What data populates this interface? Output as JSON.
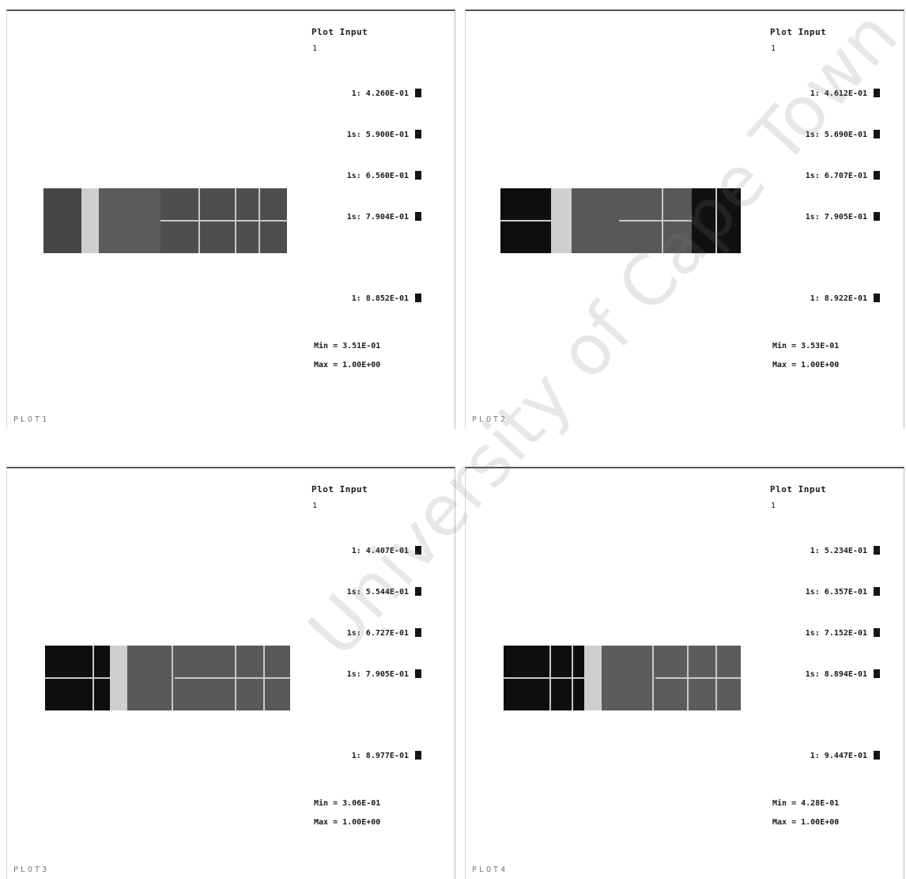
{
  "panels": [
    {
      "title": "Plot Input",
      "subtitle": "1",
      "legend": [
        "1: 4.260E-01",
        "1s: 5.900E-01",
        "1s: 6.560E-01",
        "1s: 7.904E-01",
        "1: 8.852E-01"
      ],
      "min": "Min = 3.51E-01",
      "max": "Max = 1.00E+00",
      "footer": "PLOT1"
    },
    {
      "title": "Plot Input",
      "subtitle": "1",
      "legend": [
        "1: 4.612E-01",
        "1s: 5.690E-01",
        "1s: 6.707E-01",
        "1s: 7.905E-01",
        "1: 8.922E-01"
      ],
      "min": "Min = 3.53E-01",
      "max": "Max = 1.00E+00",
      "footer": "PLOT2"
    },
    {
      "title": "Plot Input",
      "subtitle": "1",
      "legend": [
        "1: 4.407E-01",
        "1s: 5.544E-01",
        "1s: 6.727E-01",
        "1s: 7.905E-01",
        "1: 8.977E-01"
      ],
      "min": "Min = 3.06E-01",
      "max": "Max = 1.00E+00",
      "footer": "PLOT3"
    },
    {
      "title": "Plot Input",
      "subtitle": "1",
      "legend": [
        "1: 5.234E-01",
        "1s: 6.357E-01",
        "1s: 7.152E-01",
        "1s: 8.894E-01",
        "1: 9.447E-01"
      ],
      "min": "Min = 4.28E-01",
      "max": "Max = 1.00E+00",
      "footer": "PLOT4"
    }
  ],
  "watermark": "University of Cape Town",
  "colors": {
    "swatch": "#151515",
    "strip_dark": "#0e0e0e",
    "strip_mid": "#555555",
    "strip_light": "#c9c9c9"
  }
}
